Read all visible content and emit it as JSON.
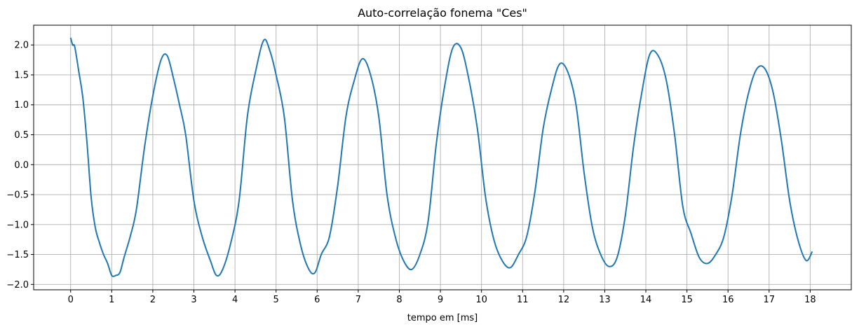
{
  "chart_data": {
    "type": "line",
    "title": "Auto-correlação fonema \"Ces\"",
    "xlabel": "tempo em [ms]",
    "ylabel": "",
    "xlim": [
      -0.9,
      19.0
    ],
    "ylim": [
      -2.09,
      2.33
    ],
    "grid": true,
    "xticks": [
      "0",
      "1",
      "2",
      "3",
      "4",
      "5",
      "6",
      "7",
      "8",
      "9",
      "10",
      "11",
      "12",
      "13",
      "14",
      "15",
      "16",
      "17",
      "18"
    ],
    "yticks": [
      "2.0",
      "1.5",
      "1.0",
      "0.5",
      "0.0",
      "−0.5",
      "−1.0",
      "−1.5",
      "−2.0"
    ],
    "series": [
      {
        "color": "#1f77b4",
        "x": [
          0,
          0.05,
          0.1,
          0.2,
          0.3,
          0.4,
          0.5,
          0.6,
          0.7,
          0.8,
          0.9,
          1.0,
          1.1,
          1.2,
          1.3,
          1.45,
          1.6,
          1.8,
          2.0,
          2.2,
          2.35,
          2.5,
          2.65,
          2.8,
          3.0,
          3.2,
          3.4,
          3.55,
          3.7,
          3.9,
          4.1,
          4.3,
          4.5,
          4.7,
          4.85,
          5.0,
          5.2,
          5.4,
          5.6,
          5.8,
          5.95,
          6.1,
          6.3,
          6.5,
          6.7,
          6.9,
          7.1,
          7.3,
          7.5,
          7.7,
          7.9,
          8.1,
          8.3,
          8.5,
          8.7,
          8.9,
          9.1,
          9.3,
          9.5,
          9.7,
          9.9,
          10.1,
          10.3,
          10.5,
          10.7,
          10.9,
          11.1,
          11.3,
          11.5,
          11.7,
          11.9,
          12.1,
          12.3,
          12.5,
          12.7,
          12.9,
          13.1,
          13.3,
          13.5,
          13.7,
          13.9,
          14.1,
          14.3,
          14.5,
          14.7,
          14.9,
          15.1,
          15.3,
          15.5,
          15.7,
          15.9,
          16.1,
          16.3,
          16.5,
          16.7,
          16.9,
          17.1,
          17.3,
          17.5,
          17.7,
          17.9,
          18.05
        ],
        "y": [
          2.12,
          2.0,
          1.97,
          1.55,
          1.1,
          0.35,
          -0.55,
          -1.05,
          -1.3,
          -1.5,
          -1.65,
          -1.85,
          -1.85,
          -1.8,
          -1.55,
          -1.2,
          -0.75,
          0.3,
          1.15,
          1.75,
          1.82,
          1.45,
          1.0,
          0.5,
          -0.6,
          -1.2,
          -1.6,
          -1.85,
          -1.75,
          -1.3,
          -0.6,
          0.8,
          1.55,
          2.08,
          1.9,
          1.5,
          0.8,
          -0.6,
          -1.35,
          -1.75,
          -1.8,
          -1.5,
          -1.2,
          -0.35,
          0.8,
          1.4,
          1.77,
          1.5,
          0.8,
          -0.5,
          -1.2,
          -1.6,
          -1.75,
          -1.5,
          -0.95,
          0.35,
          1.3,
          1.95,
          1.95,
          1.4,
          0.6,
          -0.55,
          -1.25,
          -1.6,
          -1.72,
          -1.5,
          -1.2,
          -0.45,
          0.6,
          1.25,
          1.68,
          1.55,
          1.0,
          -0.15,
          -1.05,
          -1.5,
          -1.7,
          -1.55,
          -0.85,
          0.3,
          1.2,
          1.85,
          1.82,
          1.4,
          0.5,
          -0.7,
          -1.15,
          -1.55,
          -1.65,
          -1.5,
          -1.2,
          -0.5,
          0.5,
          1.2,
          1.6,
          1.6,
          1.2,
          0.4,
          -0.6,
          -1.25,
          -1.6,
          -1.45
        ]
      }
    ]
  }
}
